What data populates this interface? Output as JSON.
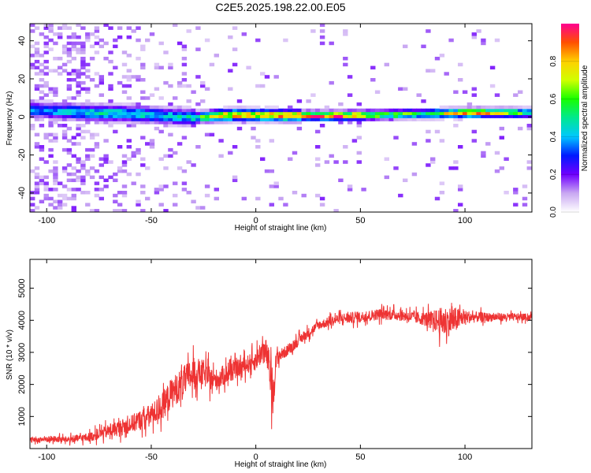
{
  "title": "C2E5.2025.198.22.00.E05",
  "colors": {
    "snr_line": "#ee3333",
    "colorbar_stops": [
      "#ffffff",
      "#c9a8f2",
      "#7000ff",
      "#0018ff",
      "#00c8ff",
      "#00e890",
      "#18ff00",
      "#d0ff00",
      "#ffd000",
      "#ff5000",
      "#ff0090"
    ]
  },
  "chart_data": [
    {
      "type": "heatmap",
      "name": "spectrogram",
      "xlabel": "Height of straight line (km)",
      "ylabel": "Frequency (Hz)",
      "xlim": [
        -108,
        132
      ],
      "ylim": [
        -50,
        49
      ],
      "xticks": [
        -100,
        -50,
        0,
        50,
        100
      ],
      "xtick_labels": [
        "-100",
        "-50",
        "0",
        "50",
        "100"
      ],
      "yticks": [
        -40,
        -20,
        0,
        20,
        40
      ],
      "ytick_labels": [
        "-40",
        "-20",
        "0",
        "20",
        "40"
      ],
      "ridge": {
        "x": [
          -105,
          -90,
          -75,
          -60,
          -45,
          -30,
          -20,
          -10,
          0,
          10,
          20,
          40,
          60,
          80,
          100,
          120,
          132
        ],
        "center_hz": [
          3,
          2,
          1.5,
          1,
          0,
          -1,
          0,
          0.5,
          0.3,
          0.2,
          0,
          0,
          0.5,
          1,
          1.5,
          1.5,
          1.5
        ],
        "peak_amplitude": [
          0.4,
          0.45,
          0.5,
          0.5,
          0.45,
          0.5,
          0.85,
          0.9,
          0.85,
          0.9,
          0.95,
          0.98,
          0.7,
          0.6,
          0.92,
          0.75,
          0.5
        ]
      },
      "colorbar": {
        "label": "Normalized spectral amplitude",
        "range": [
          0,
          1
        ],
        "ticks": [
          0.0,
          0.2,
          0.4,
          0.6,
          0.8
        ],
        "tick_labels": [
          "0.0",
          "0.2",
          "0.4",
          "0.6",
          "0.8"
        ]
      },
      "grid": false
    },
    {
      "type": "line",
      "name": "snr",
      "xlabel": "Height of straight line (km)",
      "ylabel": "SNR (10 * v/v)",
      "xlim": [
        -108,
        132
      ],
      "ylim": [
        0,
        5900
      ],
      "xticks": [
        -100,
        -50,
        0,
        50,
        100
      ],
      "xtick_labels": [
        "-100",
        "-50",
        "0",
        "50",
        "100"
      ],
      "yticks": [
        1000,
        2000,
        3000,
        4000,
        5000
      ],
      "ytick_labels": [
        "1000",
        "2000",
        "3000",
        "4000",
        "5000"
      ],
      "series": [
        {
          "x": [
            -108,
            -100,
            -90,
            -80,
            -70,
            -60,
            -50,
            -45,
            -40,
            -35,
            -30,
            -25,
            -20,
            -15,
            -10,
            -5,
            0,
            3,
            5,
            7,
            8,
            10,
            15,
            20,
            30,
            40,
            50,
            60,
            70,
            80,
            85,
            90,
            95,
            100,
            110,
            120,
            132
          ],
          "y": [
            250,
            300,
            280,
            350,
            550,
            750,
            1050,
            1300,
            1750,
            2050,
            2350,
            2350,
            2100,
            2300,
            2450,
            2600,
            2750,
            3050,
            3000,
            2300,
            1700,
            2850,
            3050,
            3350,
            3850,
            4050,
            4100,
            4200,
            4150,
            4050,
            4000,
            3950,
            4000,
            4100,
            4100,
            4100,
            4100
          ],
          "noise": [
            120,
            150,
            150,
            200,
            300,
            400,
            500,
            600,
            700,
            700,
            700,
            600,
            500,
            450,
            400,
            400,
            450,
            600,
            600,
            900,
            1200,
            300,
            250,
            250,
            200,
            250,
            250,
            250,
            250,
            300,
            450,
            700,
            600,
            300,
            200,
            180,
            150
          ]
        }
      ],
      "grid": false
    }
  ]
}
